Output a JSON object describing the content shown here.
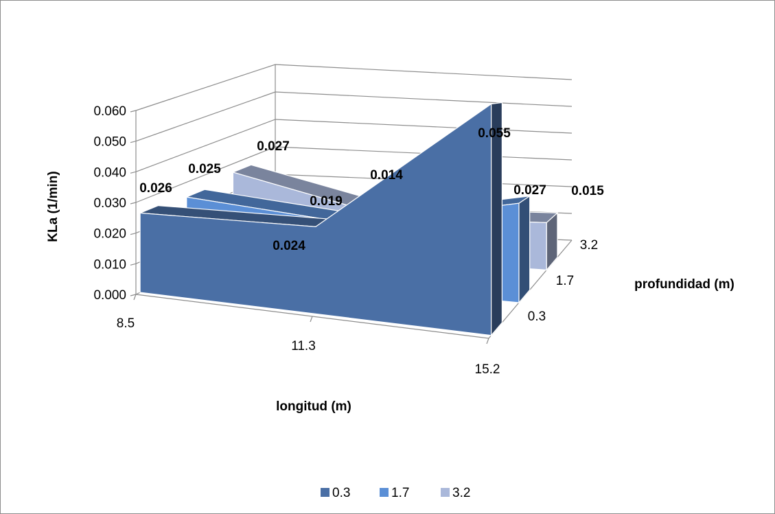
{
  "chart_data": {
    "type": "area",
    "title": "",
    "xlabel": "longitud (m)",
    "ylabel": "KLa (1/min)",
    "zlabel": "profundidad (m)",
    "x": [
      "8.5",
      "11.3",
      "15.2"
    ],
    "y_ticks": [
      "0.000",
      "0.010",
      "0.020",
      "0.030",
      "0.040",
      "0.050",
      "0.060"
    ],
    "ylim": [
      0,
      0.06
    ],
    "z_ticks": [
      "0.3",
      "1.7",
      "3.2"
    ],
    "grid": true,
    "legend_position": "bottom",
    "series": [
      {
        "name": "0.3",
        "color": "#4a6fa5",
        "values": [
          0.026,
          0.024,
          0.055
        ],
        "labels": [
          "0.026",
          "0.024",
          "0.055"
        ]
      },
      {
        "name": "1.7",
        "color": "#5b8fd6",
        "values": [
          0.025,
          0.019,
          0.027
        ],
        "labels": [
          "0.025",
          "0.019",
          "0.027"
        ]
      },
      {
        "name": "3.2",
        "color": "#aab8da",
        "values": [
          0.027,
          0.014,
          0.015
        ],
        "labels": [
          "0.027",
          "0.014",
          "0.015"
        ]
      }
    ]
  }
}
